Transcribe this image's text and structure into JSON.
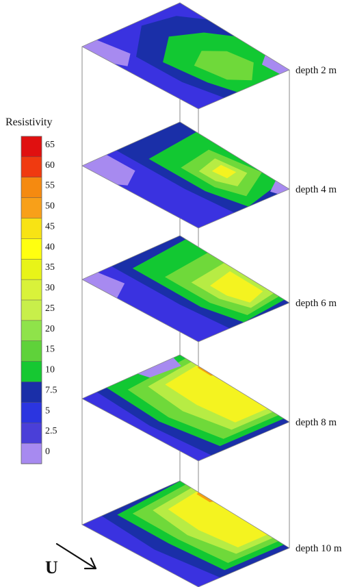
{
  "legend": {
    "title": "Resistivity",
    "ticks": [
      "65",
      "60",
      "55",
      "50",
      "45",
      "40",
      "35",
      "30",
      "25",
      "20",
      "15",
      "10",
      "7.5",
      "5",
      "2.5",
      "0"
    ],
    "colors": [
      "#e01010",
      "#f03a10",
      "#f58a10",
      "#f8a019",
      "#f8e314",
      "#ffff10",
      "#e8f418",
      "#d9f23a",
      "#c8ef4a",
      "#8fe34a",
      "#5fd23a",
      "#16c832",
      "#1a2fa8",
      "#2b35e0",
      "#4a3fd8",
      "#a78af0"
    ]
  },
  "layers": [
    {
      "label": "depth 2 m"
    },
    {
      "label": "depth 4 m"
    },
    {
      "label": "depth 6 m"
    },
    {
      "label": "depth 8 m"
    },
    {
      "label": "depth 10 m"
    }
  ],
  "direction": {
    "label": "U"
  }
}
